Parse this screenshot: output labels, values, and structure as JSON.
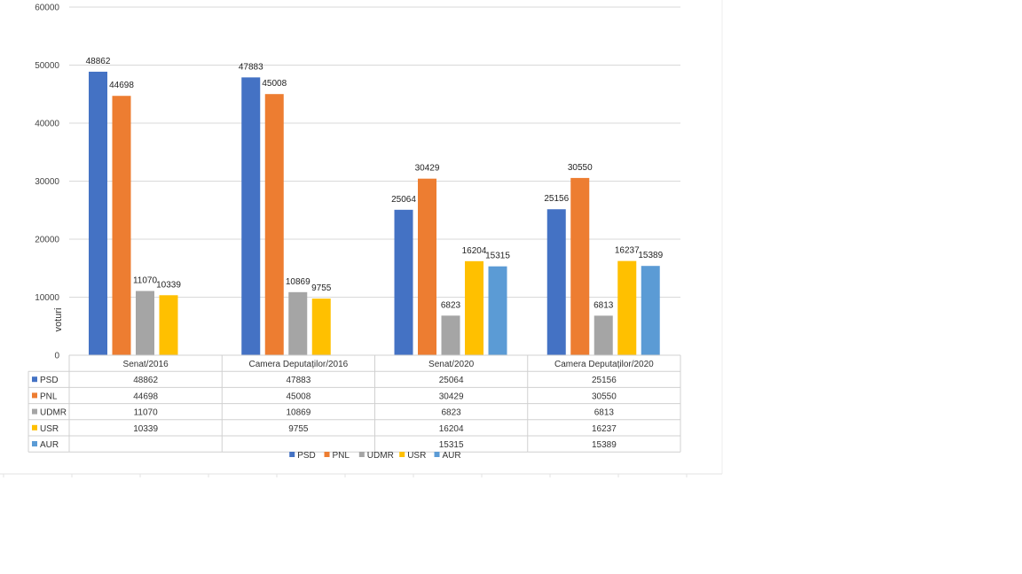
{
  "chart_data": {
    "type": "bar",
    "ylabel": "voturi",
    "ylim": [
      0,
      60000
    ],
    "yticks": [
      0,
      10000,
      20000,
      30000,
      40000,
      50000,
      60000
    ],
    "grid": true,
    "legend": "bottom",
    "data_table": true,
    "categories": [
      "Senat/2016",
      "Camera Deputaților/2016",
      "Senat/2020",
      "Camera Deputaților/2020"
    ],
    "series": [
      {
        "name": "PSD",
        "color": "#4472C4",
        "values": [
          48862,
          47883,
          25064,
          25156
        ]
      },
      {
        "name": "PNL",
        "color": "#ED7D31",
        "values": [
          44698,
          45008,
          30429,
          30550
        ]
      },
      {
        "name": "UDMR",
        "color": "#A5A5A5",
        "values": [
          11070,
          10869,
          6823,
          6813
        ]
      },
      {
        "name": "USR",
        "color": "#FFC000",
        "values": [
          10339,
          9755,
          16204,
          16237
        ]
      },
      {
        "name": "AUR",
        "color": "#5B9BD5",
        "values": [
          null,
          null,
          15315,
          15389
        ]
      }
    ]
  }
}
